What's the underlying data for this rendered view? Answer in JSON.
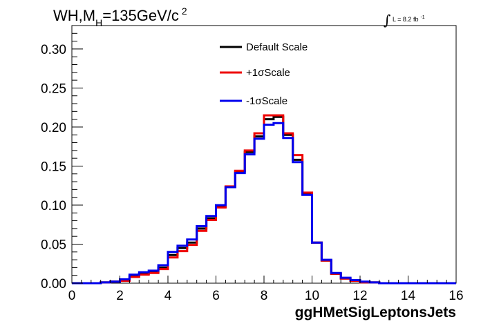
{
  "chart_data": {
    "type": "line",
    "title_parts": {
      "main": "WH,M",
      "sub": "H",
      "rest": "=135GeV/c",
      "sup": "2"
    },
    "lumi_parts": {
      "integral": "∫",
      "text": "L = 8.2 fb",
      "sup": "-1"
    },
    "xlabel": "ggHMetSigLeptonsJets",
    "ylabel": "",
    "xlim": [
      0,
      16
    ],
    "ylim": [
      0,
      0.33
    ],
    "x_ticks": [
      0,
      2,
      4,
      6,
      8,
      10,
      12,
      14,
      16
    ],
    "x_tick_labels": [
      "0",
      "2",
      "4",
      "6",
      "8",
      "10",
      "12",
      "14",
      "16"
    ],
    "y_ticks": [
      0.0,
      0.05,
      0.1,
      0.15,
      0.2,
      0.25,
      0.3
    ],
    "y_tick_labels": [
      "0.00",
      "0.05",
      "0.10",
      "0.15",
      "0.20",
      "0.25",
      "0.30"
    ],
    "grid": false,
    "legend_position": "top-center",
    "bin_edges": [
      0,
      0.4,
      0.8,
      1.2,
      1.6,
      2.0,
      2.4,
      2.8,
      3.2,
      3.6,
      4.0,
      4.4,
      4.8,
      5.2,
      5.6,
      6.0,
      6.4,
      6.8,
      7.2,
      7.6,
      8.0,
      8.4,
      8.8,
      9.2,
      9.6,
      10.0,
      10.4,
      10.8,
      11.2,
      11.6,
      12.0,
      12.4,
      12.8,
      13.2,
      13.6,
      14.0,
      14.4,
      14.8,
      15.2,
      15.6,
      16.0
    ],
    "series": [
      {
        "name": "Default Scale",
        "color": "#000000",
        "values": [
          0,
          0,
          0,
          0.001,
          0.002,
          0.004,
          0.009,
          0.012,
          0.014,
          0.02,
          0.036,
          0.045,
          0.052,
          0.07,
          0.083,
          0.098,
          0.123,
          0.143,
          0.168,
          0.188,
          0.21,
          0.213,
          0.19,
          0.158,
          0.114,
          0.052,
          0.029,
          0.012,
          0.006,
          0.003,
          0.001,
          0.001,
          0,
          0,
          0,
          0,
          0,
          0,
          0,
          0
        ]
      },
      {
        "name": "+1σScale",
        "color": "#ee0000",
        "values": [
          0,
          0,
          0,
          0.001,
          0.002,
          0.003,
          0.008,
          0.011,
          0.013,
          0.018,
          0.033,
          0.041,
          0.049,
          0.067,
          0.081,
          0.097,
          0.124,
          0.144,
          0.17,
          0.192,
          0.215,
          0.215,
          0.192,
          0.164,
          0.116,
          0.052,
          0.029,
          0.012,
          0.006,
          0.003,
          0.001,
          0.001,
          0,
          0,
          0,
          0,
          0,
          0,
          0,
          0
        ]
      },
      {
        "name": "-1σScale",
        "color": "#0000ee",
        "values": [
          0,
          0,
          0,
          0.001,
          0.002,
          0.005,
          0.011,
          0.014,
          0.016,
          0.023,
          0.04,
          0.048,
          0.056,
          0.073,
          0.086,
          0.1,
          0.123,
          0.141,
          0.165,
          0.185,
          0.203,
          0.205,
          0.186,
          0.155,
          0.113,
          0.052,
          0.03,
          0.013,
          0.007,
          0.004,
          0.002,
          0.001,
          0,
          0,
          0,
          0,
          0,
          0,
          0,
          0
        ]
      }
    ]
  }
}
